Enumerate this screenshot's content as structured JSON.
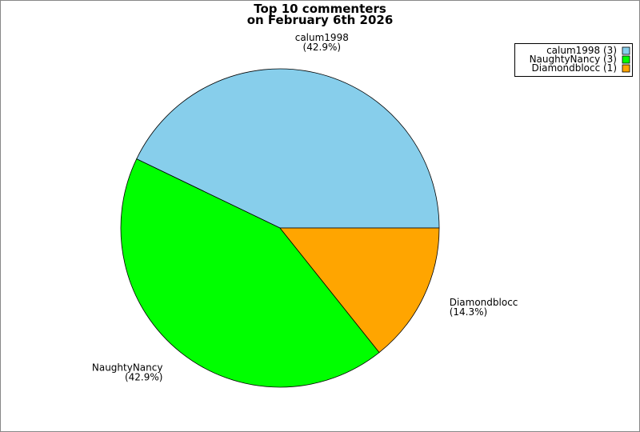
{
  "chart_data": {
    "type": "pie",
    "title": "Top 10 commenters",
    "subtitle": "on February 6th 2026",
    "categories": [
      "calum1998",
      "NaughtyNancy",
      "Diamondblocc"
    ],
    "values": [
      42.9,
      42.9,
      14.3
    ],
    "value_labels": [
      "(42.9%)",
      "(42.9%)",
      "(14.3%)"
    ],
    "colors": [
      "#87ceeb",
      "#00ff00",
      "#ffa500"
    ],
    "legend_labels": [
      "calum1998 (3)",
      "NaughtyNancy (3)",
      "Diamondblocc (1)"
    ],
    "legend": "top-right"
  }
}
